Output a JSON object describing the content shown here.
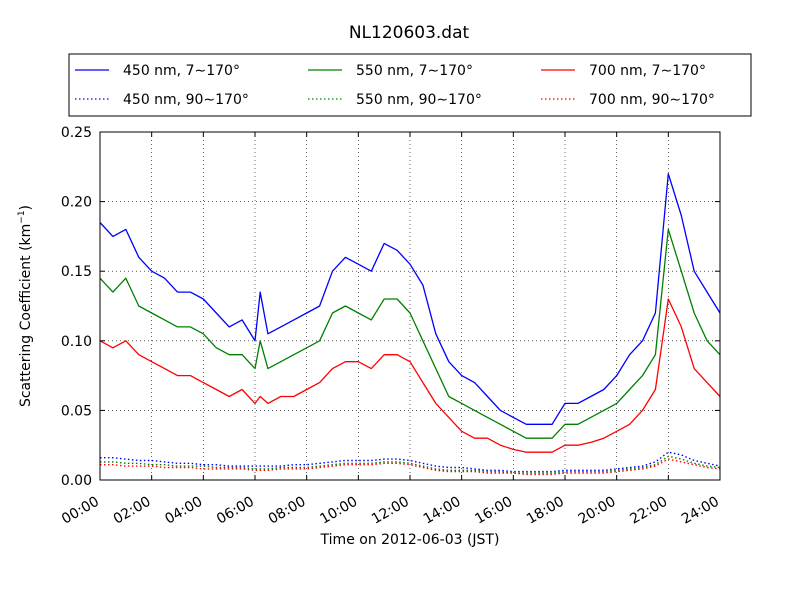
{
  "chart_data": {
    "type": "line",
    "title": "NL120603.dat",
    "xlabel": "Time on 2012-06-03 (JST)",
    "ylabel": "Scattering Coefficient (km",
    "ylabel_sup": "−1",
    "ylabel_close": ")",
    "xlim": [
      0,
      24
    ],
    "ylim": [
      0,
      0.25
    ],
    "grid": true,
    "grid_style": "dotted",
    "legend_position": "top (above plot, 3 columns)",
    "x_ticks": [
      0,
      2,
      4,
      6,
      8,
      10,
      12,
      14,
      16,
      18,
      20,
      22,
      24
    ],
    "x_tick_labels": [
      "00:00",
      "02:00",
      "04:00",
      "06:00",
      "08:00",
      "10:00",
      "12:00",
      "14:00",
      "16:00",
      "18:00",
      "20:00",
      "22:00",
      "24:00"
    ],
    "y_ticks": [
      0,
      0.05,
      0.1,
      0.15,
      0.2,
      0.25
    ],
    "y_tick_labels": [
      "0.00",
      "0.05",
      "0.10",
      "0.15",
      "0.20",
      "0.25"
    ],
    "x": [
      0,
      0.5,
      1,
      1.5,
      2,
      2.5,
      3,
      3.5,
      4,
      4.5,
      5,
      5.5,
      6,
      6.2,
      6.5,
      7,
      7.5,
      8,
      8.5,
      9,
      9.5,
      10,
      10.5,
      11,
      11.5,
      12,
      12.5,
      13,
      13.5,
      14,
      14.5,
      15,
      15.5,
      16,
      16.5,
      17,
      17.5,
      18,
      18.5,
      19,
      19.5,
      20,
      20.5,
      21,
      21.5,
      22,
      22.5,
      23,
      23.5,
      24
    ],
    "series": [
      {
        "name": "450 nm, 7∼170°",
        "color": "#0000ff",
        "style": "solid",
        "values": [
          0.185,
          0.175,
          0.18,
          0.16,
          0.15,
          0.145,
          0.135,
          0.135,
          0.13,
          0.12,
          0.11,
          0.115,
          0.1,
          0.135,
          0.105,
          0.11,
          0.115,
          0.12,
          0.125,
          0.15,
          0.16,
          0.155,
          0.15,
          0.17,
          0.165,
          0.155,
          0.14,
          0.105,
          0.085,
          0.075,
          0.07,
          0.06,
          0.05,
          0.045,
          0.04,
          0.04,
          0.04,
          0.055,
          0.055,
          0.06,
          0.065,
          0.075,
          0.09,
          0.1,
          0.12,
          0.22,
          0.19,
          0.15,
          0.135,
          0.12
        ]
      },
      {
        "name": "450 nm, 90∼170°",
        "color": "#0000ff",
        "style": "dotted",
        "values": [
          0.016,
          0.016,
          0.015,
          0.014,
          0.014,
          0.013,
          0.012,
          0.012,
          0.011,
          0.011,
          0.01,
          0.01,
          0.01,
          0.01,
          0.01,
          0.01,
          0.011,
          0.011,
          0.012,
          0.013,
          0.014,
          0.014,
          0.014,
          0.015,
          0.015,
          0.014,
          0.012,
          0.01,
          0.009,
          0.009,
          0.008,
          0.007,
          0.007,
          0.006,
          0.006,
          0.006,
          0.006,
          0.007,
          0.007,
          0.007,
          0.007,
          0.008,
          0.009,
          0.01,
          0.013,
          0.02,
          0.018,
          0.014,
          0.012,
          0.01
        ]
      },
      {
        "name": "550 nm, 7∼170°",
        "color": "#008000",
        "style": "solid",
        "values": [
          0.145,
          0.135,
          0.145,
          0.125,
          0.12,
          0.115,
          0.11,
          0.11,
          0.105,
          0.095,
          0.09,
          0.09,
          0.08,
          0.1,
          0.08,
          0.085,
          0.09,
          0.095,
          0.1,
          0.12,
          0.125,
          0.12,
          0.115,
          0.13,
          0.13,
          0.12,
          0.1,
          0.08,
          0.06,
          0.055,
          0.05,
          0.045,
          0.04,
          0.035,
          0.03,
          0.03,
          0.03,
          0.04,
          0.04,
          0.045,
          0.05,
          0.055,
          0.065,
          0.075,
          0.09,
          0.18,
          0.15,
          0.12,
          0.1,
          0.09
        ]
      },
      {
        "name": "550 nm, 90∼170°",
        "color": "#008000",
        "style": "dotted",
        "values": [
          0.013,
          0.013,
          0.012,
          0.012,
          0.011,
          0.011,
          0.01,
          0.01,
          0.01,
          0.009,
          0.009,
          0.009,
          0.008,
          0.008,
          0.008,
          0.009,
          0.009,
          0.009,
          0.01,
          0.011,
          0.012,
          0.012,
          0.012,
          0.013,
          0.013,
          0.012,
          0.01,
          0.008,
          0.007,
          0.007,
          0.007,
          0.006,
          0.006,
          0.005,
          0.005,
          0.005,
          0.005,
          0.006,
          0.006,
          0.006,
          0.006,
          0.007,
          0.008,
          0.009,
          0.011,
          0.017,
          0.015,
          0.012,
          0.01,
          0.009
        ]
      },
      {
        "name": "700 nm, 7∼170°",
        "color": "#ff0000",
        "style": "solid",
        "values": [
          0.1,
          0.095,
          0.1,
          0.09,
          0.085,
          0.08,
          0.075,
          0.075,
          0.07,
          0.065,
          0.06,
          0.065,
          0.055,
          0.06,
          0.055,
          0.06,
          0.06,
          0.065,
          0.07,
          0.08,
          0.085,
          0.085,
          0.08,
          0.09,
          0.09,
          0.085,
          0.07,
          0.055,
          0.045,
          0.035,
          0.03,
          0.03,
          0.025,
          0.022,
          0.02,
          0.02,
          0.02,
          0.025,
          0.025,
          0.027,
          0.03,
          0.035,
          0.04,
          0.05,
          0.065,
          0.13,
          0.11,
          0.08,
          0.07,
          0.06
        ]
      },
      {
        "name": "700 nm, 90∼170°",
        "color": "#ff0000",
        "style": "dotted",
        "values": [
          0.011,
          0.011,
          0.01,
          0.01,
          0.01,
          0.009,
          0.009,
          0.009,
          0.008,
          0.008,
          0.008,
          0.008,
          0.007,
          0.007,
          0.007,
          0.008,
          0.008,
          0.008,
          0.009,
          0.01,
          0.011,
          0.011,
          0.011,
          0.012,
          0.012,
          0.011,
          0.009,
          0.007,
          0.006,
          0.006,
          0.006,
          0.005,
          0.005,
          0.005,
          0.004,
          0.004,
          0.004,
          0.005,
          0.005,
          0.005,
          0.005,
          0.006,
          0.007,
          0.008,
          0.01,
          0.015,
          0.013,
          0.011,
          0.009,
          0.008
        ]
      }
    ]
  }
}
